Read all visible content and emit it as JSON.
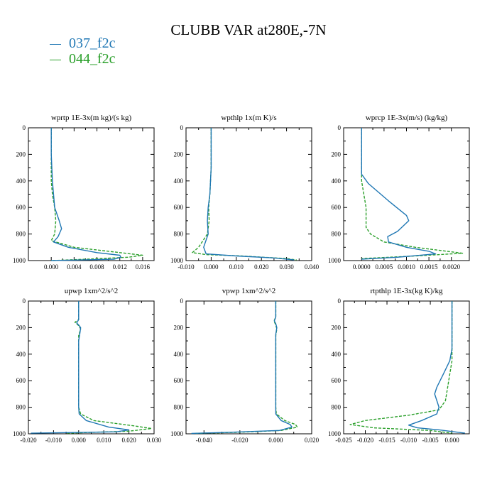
{
  "figure": {
    "title": "CLUBB VAR at280E,-7N",
    "series_colors": {
      "037_f2c": "#1f77b4",
      "044_f2c": "#2ca02c"
    },
    "legend": [
      {
        "name": "037_f2c",
        "color": "#1f77b4",
        "dash": "solid"
      },
      {
        "name": "044_f2c",
        "color": "#2ca02c",
        "dash": "dashed"
      }
    ]
  },
  "chart_data": [
    {
      "type": "line",
      "title": "wprtp   1E-3x(m kg)/(s kg)",
      "xlim": [
        -0.004,
        0.018
      ],
      "ylim": [
        1000,
        0
      ],
      "xticks": [
        0.0,
        0.004,
        0.008,
        0.012,
        0.016
      ],
      "xtick_labels": [
        "0.000",
        "0.004",
        "0.008",
        "0.012",
        "0.016"
      ],
      "yticks": [
        0,
        200,
        400,
        600,
        800,
        1000
      ],
      "ytick_labels": [
        "0",
        "200",
        "400",
        "600",
        "800",
        "1000"
      ],
      "grid": false,
      "series": [
        {
          "name": "037_f2c",
          "points": [
            [
              0.0,
              0
            ],
            [
              0.0,
              200
            ],
            [
              0.0002,
              400
            ],
            [
              0.0004,
              500
            ],
            [
              0.0006,
              600
            ],
            [
              0.0014,
              700
            ],
            [
              0.0018,
              760
            ],
            [
              0.0012,
              820
            ],
            [
              0.0004,
              860
            ],
            [
              0.003,
              900
            ],
            [
              0.008,
              940
            ],
            [
              0.012,
              960
            ],
            [
              0.0122,
              975
            ],
            [
              0.011,
              990
            ],
            [
              0.0,
              1000
            ]
          ]
        },
        {
          "name": "044_f2c",
          "points": [
            [
              0.0,
              0
            ],
            [
              0.0,
              200
            ],
            [
              0.0,
              400
            ],
            [
              0.0002,
              500
            ],
            [
              0.0006,
              600
            ],
            [
              0.0008,
              700
            ],
            [
              0.0006,
              800
            ],
            [
              0.0,
              850
            ],
            [
              0.004,
              900
            ],
            [
              0.01,
              930
            ],
            [
              0.016,
              960
            ],
            [
              0.0135,
              975
            ],
            [
              0.006,
              990
            ],
            [
              0.0,
              1000
            ]
          ]
        }
      ]
    },
    {
      "type": "line",
      "title": "wpthlp   1x(m K)/s",
      "xlim": [
        -0.01,
        0.04
      ],
      "ylim": [
        1000,
        0
      ],
      "xticks": [
        -0.01,
        0.0,
        0.01,
        0.02,
        0.03,
        0.04
      ],
      "xtick_labels": [
        "-0.010",
        "0.000",
        "0.010",
        "0.020",
        "0.030",
        "0.040"
      ],
      "yticks": [
        0,
        200,
        400,
        600,
        800,
        1000
      ],
      "ytick_labels": [
        "0",
        "200",
        "400",
        "600",
        "800",
        "1000"
      ],
      "grid": false,
      "series": [
        {
          "name": "037_f2c",
          "points": [
            [
              0.0,
              0
            ],
            [
              0.0,
              300
            ],
            [
              -0.0005,
              500
            ],
            [
              -0.0012,
              600
            ],
            [
              -0.0015,
              700
            ],
            [
              -0.0012,
              800
            ],
            [
              -0.003,
              900
            ],
            [
              -0.002,
              950
            ],
            [
              0.01,
              965
            ],
            [
              0.025,
              980
            ],
            [
              0.033,
              995
            ]
          ]
        },
        {
          "name": "044_f2c",
          "points": [
            [
              0.0,
              0
            ],
            [
              0.0,
              300
            ],
            [
              -0.0005,
              500
            ],
            [
              -0.001,
              600
            ],
            [
              -0.0008,
              700
            ],
            [
              -0.0015,
              800
            ],
            [
              -0.005,
              900
            ],
            [
              -0.0075,
              940
            ],
            [
              -0.002,
              955
            ],
            [
              0.012,
              965
            ],
            [
              0.03,
              985
            ],
            [
              0.034,
              995
            ]
          ]
        }
      ]
    },
    {
      "type": "line",
      "title": "wprcp   1E-3x(m/s) (kg/kg)",
      "xlim": [
        -0.0004,
        0.0024
      ],
      "ylim": [
        1000,
        0
      ],
      "xticks": [
        0.0,
        0.0005,
        0.001,
        0.0015,
        0.002
      ],
      "xtick_labels": [
        "0.0000",
        "0.0005",
        "0.0010",
        "0.0015",
        "0.0020"
      ],
      "yticks": [
        0,
        200,
        400,
        600,
        800,
        1000
      ],
      "ytick_labels": [
        "0",
        "200",
        "400",
        "600",
        "800",
        "1000"
      ],
      "grid": false,
      "series": [
        {
          "name": "037_f2c",
          "points": [
            [
              0.0,
              0
            ],
            [
              0.0,
              350
            ],
            [
              0.00015,
              420
            ],
            [
              0.0006,
              550
            ],
            [
              0.001,
              660
            ],
            [
              0.00105,
              700
            ],
            [
              0.0008,
              780
            ],
            [
              0.00058,
              820
            ],
            [
              0.0006,
              860
            ],
            [
              0.001,
              900
            ],
            [
              0.0015,
              930
            ],
            [
              0.00165,
              950
            ],
            [
              0.0008,
              975
            ],
            [
              0.0,
              990
            ]
          ]
        },
        {
          "name": "044_f2c",
          "points": [
            [
              0.0,
              0
            ],
            [
              0.0,
              350
            ],
            [
              0.0,
              400
            ],
            [
              5e-05,
              500
            ],
            [
              0.0001,
              600
            ],
            [
              0.0001,
              750
            ],
            [
              0.0002,
              800
            ],
            [
              0.0005,
              860
            ],
            [
              0.0012,
              900
            ],
            [
              0.0019,
              930
            ],
            [
              0.00225,
              945
            ],
            [
              0.0012,
              965
            ],
            [
              0.0,
              985
            ]
          ]
        }
      ]
    },
    {
      "type": "line",
      "title": "upwp   1xm^2/s^2",
      "xlim": [
        -0.02,
        0.03
      ],
      "ylim": [
        1000,
        0
      ],
      "xticks": [
        -0.02,
        -0.01,
        0.0,
        0.01,
        0.02,
        0.03
      ],
      "xtick_labels": [
        "-0.020",
        "-0.010",
        "0.000",
        "0.010",
        "0.020",
        "0.030"
      ],
      "yticks": [
        0,
        200,
        400,
        600,
        800,
        1000
      ],
      "ytick_labels": [
        "0",
        "200",
        "400",
        "600",
        "800",
        "1000"
      ],
      "grid": false,
      "series": [
        {
          "name": "037_f2c",
          "points": [
            [
              0.0,
              0
            ],
            [
              0.0,
              140
            ],
            [
              -0.0008,
              165
            ],
            [
              0.0,
              180
            ],
            [
              0.0008,
              200
            ],
            [
              0.0005,
              240
            ],
            [
              0.0,
              300
            ],
            [
              0.0,
              600
            ],
            [
              0.0,
              800
            ],
            [
              0.0002,
              850
            ],
            [
              0.003,
              900
            ],
            [
              0.012,
              950
            ],
            [
              0.02,
              970
            ],
            [
              0.015,
              985
            ],
            [
              -0.019,
              995
            ]
          ]
        },
        {
          "name": "044_f2c",
          "points": [
            [
              0.0,
              0
            ],
            [
              0.0,
              140
            ],
            [
              -0.0015,
              160
            ],
            [
              0.0,
              185
            ],
            [
              0.0008,
              210
            ],
            [
              0.0,
              260
            ],
            [
              0.0,
              600
            ],
            [
              0.0,
              800
            ],
            [
              0.0008,
              850
            ],
            [
              0.006,
              900
            ],
            [
              0.022,
              940
            ],
            [
              0.029,
              960
            ],
            [
              0.02,
              980
            ],
            [
              -0.005,
              995
            ]
          ]
        }
      ]
    },
    {
      "type": "line",
      "title": "vpwp   1xm^2/s^2",
      "xlim": [
        -0.05,
        0.02
      ],
      "ylim": [
        1000,
        0
      ],
      "xticks": [
        -0.04,
        -0.02,
        0.0,
        0.02
      ],
      "xtick_labels": [
        "-0.040",
        "-0.020",
        "0.000",
        "0.020"
      ],
      "yticks": [
        0,
        200,
        400,
        600,
        800,
        1000
      ],
      "ytick_labels": [
        "0",
        "200",
        "400",
        "600",
        "800",
        "1000"
      ],
      "grid": false,
      "series": [
        {
          "name": "037_f2c",
          "points": [
            [
              0.0,
              0
            ],
            [
              0.0,
              120
            ],
            [
              -0.0008,
              150
            ],
            [
              0.0,
              170
            ],
            [
              0.0006,
              200
            ],
            [
              0.0,
              250
            ],
            [
              0.0,
              500
            ],
            [
              0.0,
              800
            ],
            [
              0.0,
              850
            ],
            [
              0.003,
              900
            ],
            [
              0.008,
              930
            ],
            [
              0.009,
              950
            ],
            [
              0.002,
              975
            ],
            [
              -0.025,
              988
            ],
            [
              -0.047,
              997
            ]
          ]
        },
        {
          "name": "044_f2c",
          "points": [
            [
              0.0,
              0
            ],
            [
              0.0,
              120
            ],
            [
              -0.001,
              150
            ],
            [
              0.0,
              180
            ],
            [
              0.0006,
              210
            ],
            [
              0.0,
              260
            ],
            [
              0.0,
              500
            ],
            [
              0.0,
              800
            ],
            [
              0.0003,
              850
            ],
            [
              0.005,
              900
            ],
            [
              0.011,
              930
            ],
            [
              0.012,
              950
            ],
            [
              0.003,
              975
            ],
            [
              -0.02,
              988
            ],
            [
              -0.045,
              997
            ]
          ]
        }
      ]
    },
    {
      "type": "line",
      "title": "rtpthlp   1E-3x(kg K)/kg",
      "xlim": [
        -0.025,
        0.004
      ],
      "ylim": [
        1000,
        0
      ],
      "xticks": [
        -0.025,
        -0.02,
        -0.015,
        -0.01,
        -0.005,
        0.0
      ],
      "xtick_labels": [
        "-0.025",
        "-0.020",
        "-0.015",
        "-0.010",
        "-0.005",
        "0.000"
      ],
      "yticks": [
        0,
        200,
        400,
        600,
        800,
        1000
      ],
      "ytick_labels": [
        "0",
        "200",
        "400",
        "600",
        "800",
        "1000"
      ],
      "grid": false,
      "series": [
        {
          "name": "037_f2c",
          "points": [
            [
              0.0,
              0
            ],
            [
              0.0,
              360
            ],
            [
              -0.0005,
              450
            ],
            [
              -0.002,
              550
            ],
            [
              -0.0035,
              650
            ],
            [
              -0.004,
              700
            ],
            [
              -0.003,
              800
            ],
            [
              -0.0035,
              850
            ],
            [
              -0.007,
              900
            ],
            [
              -0.01,
              935
            ],
            [
              -0.008,
              955
            ],
            [
              -0.003,
              970
            ],
            [
              0.003,
              995
            ]
          ]
        },
        {
          "name": "044_f2c",
          "points": [
            [
              0.0,
              0
            ],
            [
              0.0,
              360
            ],
            [
              0.0,
              450
            ],
            [
              -0.0005,
              550
            ],
            [
              -0.001,
              650
            ],
            [
              -0.0015,
              750
            ],
            [
              -0.003,
              820
            ],
            [
              -0.01,
              860
            ],
            [
              -0.02,
              900
            ],
            [
              -0.0235,
              930
            ],
            [
              -0.018,
              955
            ],
            [
              -0.005,
              975
            ],
            [
              0.0,
              995
            ]
          ]
        }
      ]
    }
  ]
}
